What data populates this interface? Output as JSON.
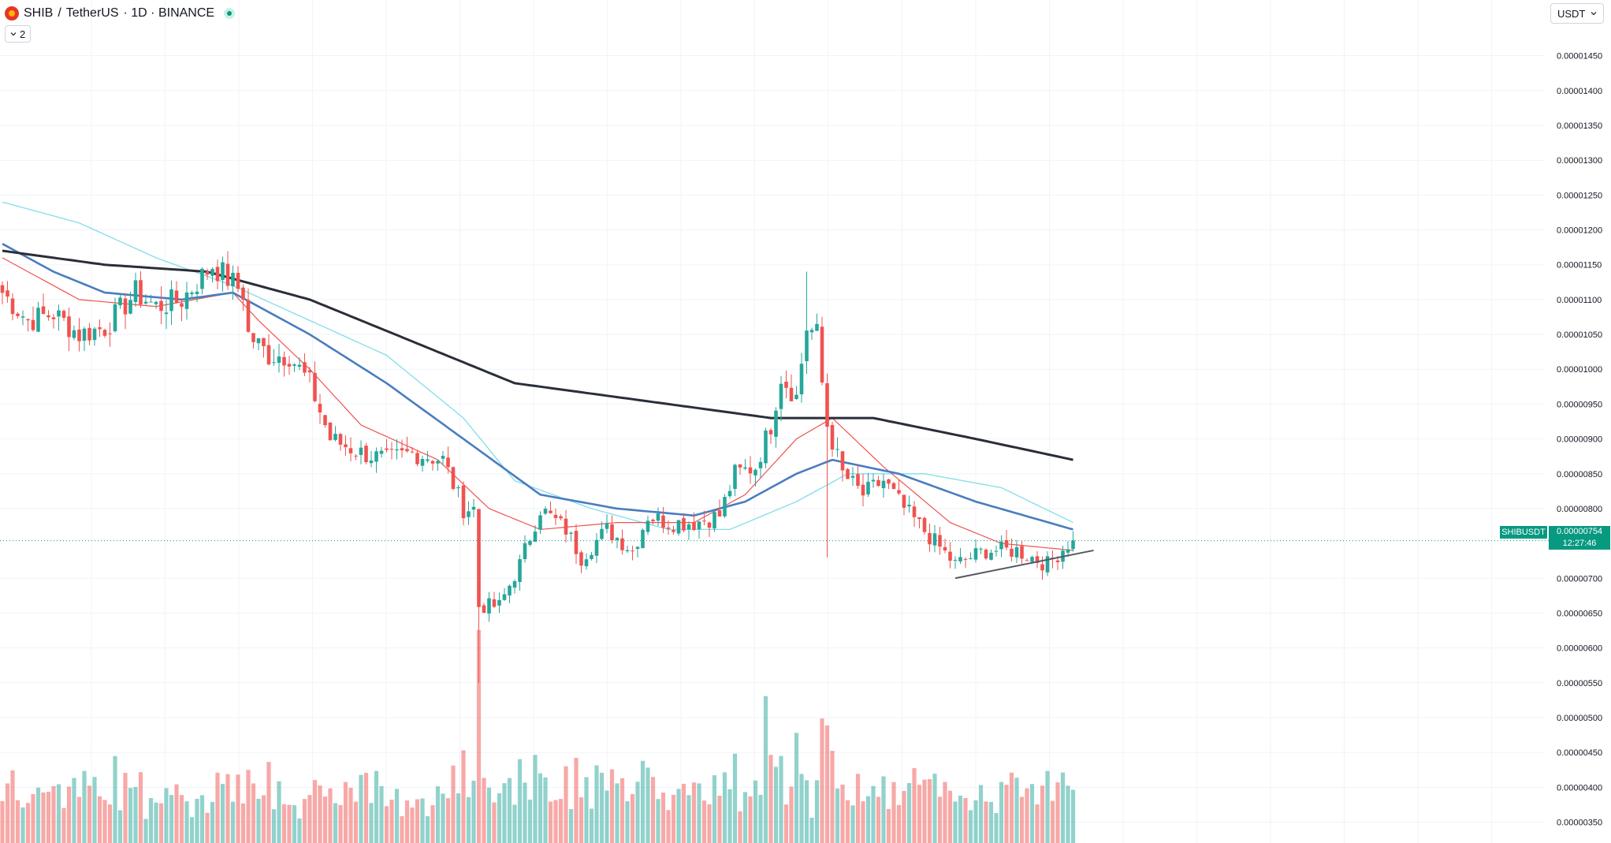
{
  "header": {
    "symbol": "SHIB",
    "separator": "/",
    "quote": "TetherUS",
    "meta": "· 1D · BINANCE"
  },
  "indicator_toggle": {
    "count": "2"
  },
  "currency_button": {
    "label": "USDT"
  },
  "last_price": {
    "symbol": "SHIBUSDT",
    "value": "0.00000754",
    "countdown": "12:27:46"
  },
  "colors": {
    "up": "#26a69a",
    "down": "#ef5350",
    "ma_fast": "#ef5350",
    "ma_mid": "#4a7cbf",
    "ma_slow": "#80deea",
    "ma_long": "#2a2e39",
    "trendline": "#555861",
    "last_price_line": "#089981"
  },
  "chart_data": {
    "type": "candlestick",
    "interval": "1D",
    "exchange": "BINANCE",
    "pair": "SHIB/USDT",
    "y_axis": {
      "ticks": [
        "0.00001450",
        "0.00001400",
        "0.00001350",
        "0.00001300",
        "0.00001250",
        "0.00001200",
        "0.00001150",
        "0.00001100",
        "0.00001050",
        "0.00001000",
        "0.00000950",
        "0.00000900",
        "0.00000850",
        "0.00000800",
        "0.00000700",
        "0.00000650",
        "0.00000600",
        "0.00000550",
        "0.00000500",
        "0.00000450",
        "0.00000400",
        "0.00000350"
      ],
      "range": [
        3.2e-06,
        1.53e-05
      ],
      "position": "right",
      "scale": "linear"
    },
    "grid": true,
    "close_anchors": [
      [
        0,
        1.11e-05
      ],
      [
        5,
        1.07e-05
      ],
      [
        10,
        1.08e-05
      ],
      [
        15,
        1.05e-05
      ],
      [
        20,
        1.06e-05
      ],
      [
        26,
        1.11e-05
      ],
      [
        30,
        1.09e-05
      ],
      [
        35,
        1.1e-05
      ],
      [
        41,
        1.15e-05
      ],
      [
        47,
        1.11e-05
      ],
      [
        48,
        1.05e-05
      ],
      [
        52,
        1.02e-05
      ],
      [
        56,
        1.02e-05
      ],
      [
        60,
        9.8e-06
      ],
      [
        64,
        9e-06
      ],
      [
        70,
        8.8e-06
      ],
      [
        75,
        8.7e-06
      ],
      [
        80,
        8.8e-06
      ],
      [
        86,
        8.7e-06
      ],
      [
        90,
        8e-06
      ],
      [
        92,
        8e-06
      ],
      [
        93,
        6.6e-06
      ],
      [
        97,
        6.6e-06
      ],
      [
        101,
        7.2e-06
      ],
      [
        105,
        8e-06
      ],
      [
        110,
        7.7e-06
      ],
      [
        113,
        7.3e-06
      ],
      [
        118,
        7.7e-06
      ],
      [
        123,
        7.4e-06
      ],
      [
        126,
        7.9e-06
      ],
      [
        130,
        7.8e-06
      ],
      [
        135,
        7.8e-06
      ],
      [
        140,
        7.9e-06
      ],
      [
        143,
        8.5e-06
      ],
      [
        147,
        8.6e-06
      ],
      [
        150,
        9.2e-06
      ],
      [
        152,
        9.9e-06
      ],
      [
        155,
        9.6e-06
      ],
      [
        157,
        1.06e-05
      ],
      [
        159,
        1.05e-05
      ],
      [
        160,
        9.8e-06
      ],
      [
        161,
        9.2e-06
      ],
      [
        164,
        8.5e-06
      ],
      [
        168,
        8.2e-06
      ],
      [
        172,
        8.4e-06
      ],
      [
        176,
        8e-06
      ],
      [
        181,
        7.6e-06
      ],
      [
        186,
        7.2e-06
      ],
      [
        192,
        7.4e-06
      ],
      [
        198,
        7.4e-06
      ],
      [
        204,
        7.2e-06
      ],
      [
        208,
        7.5e-06
      ],
      [
        209,
        7.5e-06
      ]
    ],
    "big_wicks": [
      {
        "day": 93,
        "low": 5.5e-06,
        "high": 8e-06
      },
      {
        "day": 157,
        "high": 1.14e-05
      },
      {
        "day": 161,
        "low": 7.3e-06
      }
    ],
    "ma_long": [
      [
        0,
        1.17e-05
      ],
      [
        20,
        1.15e-05
      ],
      [
        40,
        1.14e-05
      ],
      [
        60,
        1.1e-05
      ],
      [
        80,
        1.04e-05
      ],
      [
        100,
        9.8e-06
      ],
      [
        120,
        9.6e-06
      ],
      [
        150,
        9.3e-06
      ],
      [
        170,
        9.3e-06
      ],
      [
        190,
        9e-06
      ],
      [
        209,
        8.7e-06
      ]
    ],
    "ma_mid": [
      [
        0,
        1.18e-05
      ],
      [
        10,
        1.14e-05
      ],
      [
        20,
        1.11e-05
      ],
      [
        35,
        1.1e-05
      ],
      [
        45,
        1.11e-05
      ],
      [
        60,
        1.05e-05
      ],
      [
        75,
        9.8e-06
      ],
      [
        90,
        9e-06
      ],
      [
        105,
        8.2e-06
      ],
      [
        120,
        8e-06
      ],
      [
        135,
        7.9e-06
      ],
      [
        145,
        8.1e-06
      ],
      [
        155,
        8.5e-06
      ],
      [
        162,
        8.7e-06
      ],
      [
        175,
        8.5e-06
      ],
      [
        190,
        8.1e-06
      ],
      [
        209,
        7.7e-06
      ]
    ],
    "ma_slow": [
      [
        0,
        1.24e-05
      ],
      [
        15,
        1.21e-05
      ],
      [
        30,
        1.16e-05
      ],
      [
        45,
        1.12e-05
      ],
      [
        60,
        1.07e-05
      ],
      [
        75,
        1.02e-05
      ],
      [
        90,
        9.3e-06
      ],
      [
        100,
        8.4e-06
      ],
      [
        115,
        8e-06
      ],
      [
        130,
        7.7e-06
      ],
      [
        142,
        7.7e-06
      ],
      [
        155,
        8.1e-06
      ],
      [
        165,
        8.5e-06
      ],
      [
        180,
        8.5e-06
      ],
      [
        195,
        8.3e-06
      ],
      [
        209,
        7.8e-06
      ]
    ],
    "ma_fast": [
      [
        0,
        1.16e-05
      ],
      [
        15,
        1.1e-05
      ],
      [
        30,
        1.09e-05
      ],
      [
        45,
        1.11e-05
      ],
      [
        50,
        1.07e-05
      ],
      [
        60,
        1e-05
      ],
      [
        70,
        9.2e-06
      ],
      [
        85,
        8.7e-06
      ],
      [
        95,
        8e-06
      ],
      [
        105,
        7.7e-06
      ],
      [
        120,
        7.8e-06
      ],
      [
        135,
        7.8e-06
      ],
      [
        145,
        8.2e-06
      ],
      [
        155,
        9e-06
      ],
      [
        162,
        9.3e-06
      ],
      [
        172,
        8.6e-06
      ],
      [
        185,
        7.8e-06
      ],
      [
        195,
        7.5e-06
      ],
      [
        209,
        7.4e-06
      ]
    ],
    "trendline": {
      "from": [
        186,
        7e-06
      ],
      "to": [
        213,
        7.4e-06
      ]
    },
    "volume_max_day": 149
  }
}
